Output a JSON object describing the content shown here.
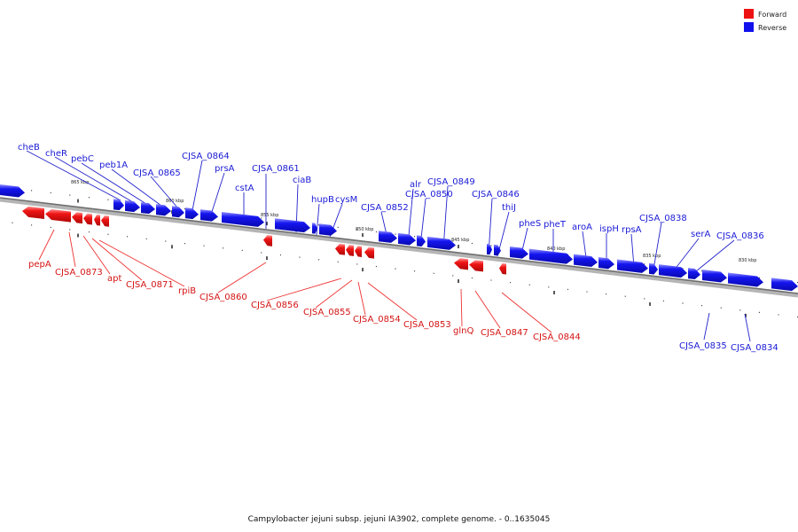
{
  "caption": "Campylobacter jejuni subsp. jejuni IA3902, complete genome. - 0..1635045",
  "colors": {
    "forward": "#ee1111",
    "reverse": "#1111ee",
    "backbone": "#7a7a7a"
  },
  "legend": [
    {
      "label": "Forward",
      "color": "#ee1111"
    },
    {
      "label": "Reverse",
      "color": "#1111ee"
    }
  ],
  "kbp_labels": [
    "865 kbp",
    "860 kbp",
    "855 kbp",
    "850 kbp",
    "845 kbp",
    "840 kbp",
    "835 kbp",
    "830 kbp"
  ],
  "reverse_genes": [
    "cheB",
    "cheR",
    "pebC",
    "peb1A",
    "CJSA_0865",
    "CJSA_0864",
    "prsA",
    "cstA",
    "CJSA_0861",
    "ciaB",
    "hupB",
    "cysM",
    "CJSA_0852",
    "alr",
    "CJSA_0850",
    "CJSA_0849",
    "CJSA_0846",
    "thiJ",
    "pheS",
    "pheT",
    "aroA",
    "ispH",
    "rpsA",
    "CJSA_0838",
    "serA",
    "CJSA_0836",
    "CJSA_0835",
    "CJSA_0834"
  ],
  "forward_genes": [
    "pepA",
    "CJSA_0873",
    "apt",
    "CJSA_0871",
    "rpiB",
    "CJSA_0860",
    "CJSA_0856",
    "CJSA_0855",
    "CJSA_0854",
    "CJSA_0853",
    "glnQ",
    "CJSA_0847",
    "CJSA_0844"
  ]
}
